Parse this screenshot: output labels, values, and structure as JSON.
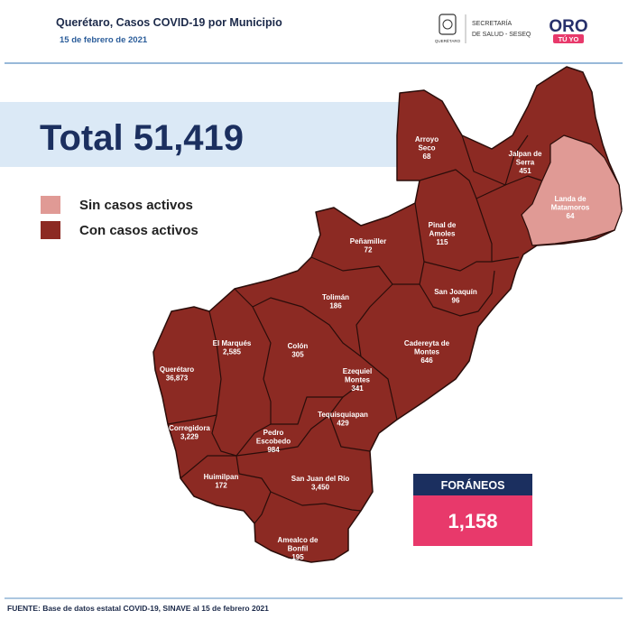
{
  "header": {
    "title": "Querétaro, Casos COVID-19 por Municipio",
    "date": "15 de febrero de 2021",
    "logo_state": "QUERÉTARO",
    "agency": [
      "SECRETARÍA",
      "DE SALUD - SESEQ"
    ],
    "brand": "ORO",
    "brand_tagline": "TÚ YO"
  },
  "total": {
    "label": "Total",
    "value": "51,419"
  },
  "legend": [
    "Sin casos activos",
    "Con casos activos"
  ],
  "municipalities": [
    {
      "name": [
        "Arroyo",
        "Seco"
      ],
      "count": "68"
    },
    {
      "name": [
        "Jalpan de",
        "Serra"
      ],
      "count": "451"
    },
    {
      "name": [
        "Landa de",
        "Matamoros"
      ],
      "count": "64"
    },
    {
      "name": [
        "Peñamiller"
      ],
      "count": "72"
    },
    {
      "name": [
        "Pinal de",
        "Amoles"
      ],
      "count": "115"
    },
    {
      "name": [
        "San Joaquín"
      ],
      "count": "96"
    },
    {
      "name": [
        "Tolimán"
      ],
      "count": "186"
    },
    {
      "name": [
        "El Marqués"
      ],
      "count": "2,585"
    },
    {
      "name": [
        "Colón"
      ],
      "count": "305"
    },
    {
      "name": [
        "Cadereyta de",
        "Montes"
      ],
      "count": "646"
    },
    {
      "name": [
        "Querétaro"
      ],
      "count": "36,873"
    },
    {
      "name": [
        "Ezequiel",
        "Montes"
      ],
      "count": "341"
    },
    {
      "name": [
        "Tequisquiapan"
      ],
      "count": "429"
    },
    {
      "name": [
        "Corregidora"
      ],
      "count": "3,229"
    },
    {
      "name": [
        "Pedro",
        "Escobedo"
      ],
      "count": "984"
    },
    {
      "name": [
        "Huimilpan"
      ],
      "count": "172"
    },
    {
      "name": [
        "San Juan del Río"
      ],
      "count": "3,450"
    },
    {
      "name": [
        "Amealco de",
        "Bonfil"
      ],
      "count": "195"
    }
  ],
  "foraneos": {
    "label": "FORÁNEOS",
    "value": "1,158"
  },
  "footer": "FUENTE: Base de datos estatal COVID-19, SINAVE al 15 de febrero 2021"
}
